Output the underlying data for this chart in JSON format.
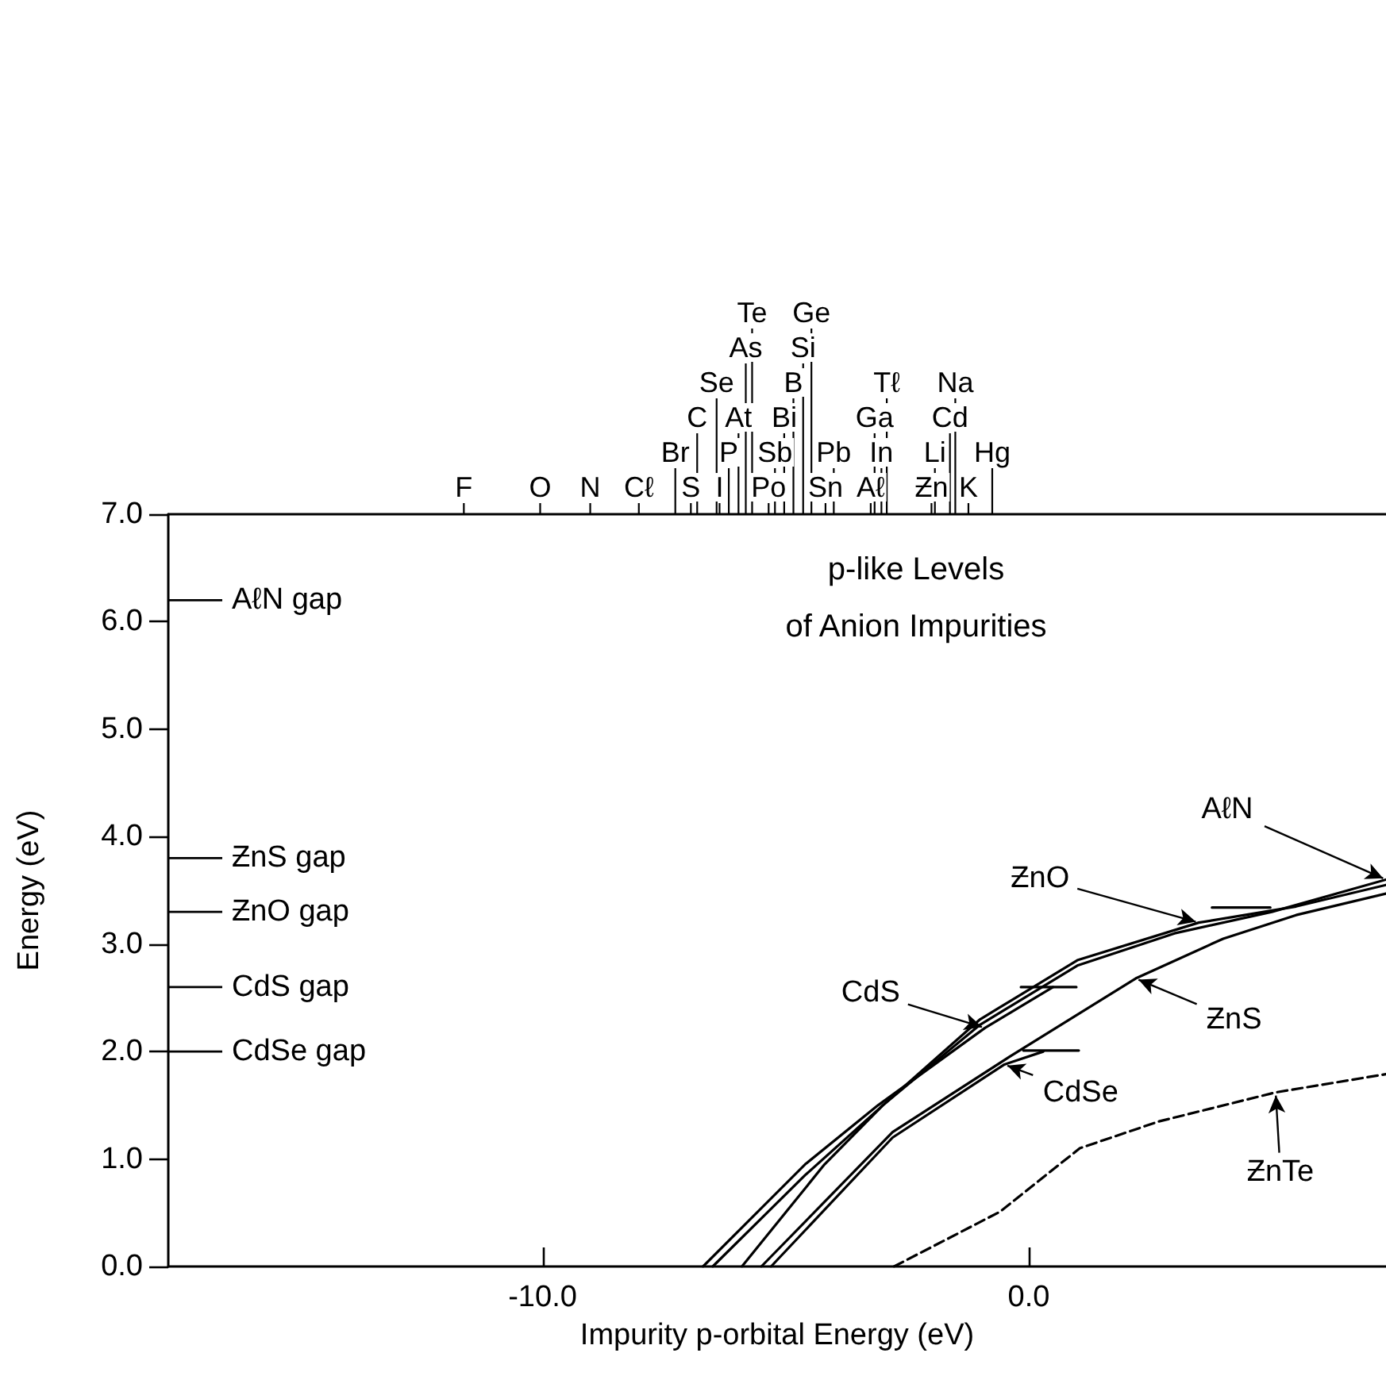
{
  "chart_data": {
    "type": "line",
    "title": "p-like Levels\nof Anion Impurities",
    "xlabel": "Impurity p-orbital Energy (eV)",
    "ylabel": "Energy (eV)",
    "xlim": [
      -17.7,
      7.35
    ],
    "ylim": [
      0,
      7
    ],
    "xticks": [
      {
        "value": -10,
        "label": "-10.0"
      },
      {
        "value": 0,
        "label": "0.0"
      }
    ],
    "yticks": [
      {
        "value": 0,
        "label": "0.0"
      },
      {
        "value": 1,
        "label": "1.0"
      },
      {
        "value": 2,
        "label": "2.0"
      },
      {
        "value": 3,
        "label": "3.0"
      },
      {
        "value": 4,
        "label": "4.0"
      },
      {
        "value": 5,
        "label": "5.0"
      },
      {
        "value": 6,
        "label": "6.0"
      },
      {
        "value": 7,
        "label": "7.0"
      }
    ],
    "grid": false,
    "legend": false,
    "marker": "none",
    "series": [
      {
        "name": "ƵnO",
        "color": "#000000",
        "x": [
          -6.5,
          -4.6,
          -3,
          -1,
          1,
          3.5,
          5.5,
          7.35
        ],
        "values": [
          0,
          0.85,
          1.5,
          2.3,
          2.85,
          3.2,
          3.35,
          3.55
        ]
      },
      {
        "name": "CdS",
        "color": "#000000",
        "x": [
          -6.7,
          -4.6,
          -3.1,
          -0.9,
          0.5
        ],
        "values": [
          0,
          0.95,
          1.5,
          2.22,
          2.6
        ]
      },
      {
        "name": "AℓN",
        "color": "#000000",
        "x": [
          -5.9,
          -4.2,
          -3,
          -1,
          1,
          3,
          5,
          7.35
        ],
        "values": [
          0,
          0.95,
          1.5,
          2.25,
          2.8,
          3.1,
          3.3,
          3.6
        ]
      },
      {
        "name": "ƵnS",
        "color": "#000000",
        "x": [
          -5.5,
          -2.8,
          -0.4,
          2.2,
          4,
          5.5,
          7.35
        ],
        "values": [
          0,
          1.25,
          1.95,
          2.68,
          3.05,
          3.27,
          3.47
        ]
      },
      {
        "name": "CdSe",
        "color": "#000000",
        "x": [
          -5.3,
          -2.8,
          -0.5,
          0.3
        ],
        "values": [
          0,
          1.2,
          1.88,
          2.0
        ]
      },
      {
        "name": "ƵnTe",
        "color": "#000000",
        "line_style": "dashed",
        "x": [
          -2.77,
          -0.59,
          1.05,
          2.68,
          5.08,
          7.35
        ],
        "values": [
          0,
          0.51,
          1.1,
          1.35,
          1.62,
          1.79
        ]
      },
      {
        "color": "#000000",
        "x": [
          3.77,
          4.97
        ],
        "values": [
          3.34,
          3.34
        ]
      },
      {
        "color": "#000000",
        "x": [
          -0.16,
          0.98
        ],
        "values": [
          2.6,
          2.6
        ]
      },
      {
        "color": "#000000",
        "x": [
          -0.11,
          1.03
        ],
        "values": [
          2.01,
          2.01
        ]
      }
    ],
    "ref_lines": [
      {
        "axis": "y",
        "value": 6.2,
        "label": "AℓN gap"
      },
      {
        "axis": "y",
        "value": 3.8,
        "label": "ƵnS gap"
      },
      {
        "axis": "y",
        "value": 3.3,
        "label": "ƵnO gap"
      },
      {
        "axis": "y",
        "value": 2.6,
        "label": "CdS gap"
      },
      {
        "axis": "y",
        "value": 2.0,
        "label": "CdSe gap"
      },
      {
        "axis": "x",
        "value": -11.62,
        "label": "F"
      },
      {
        "axis": "x",
        "value": -10.05,
        "label": "O"
      },
      {
        "axis": "x",
        "value": -9.02,
        "label": "N"
      },
      {
        "axis": "x",
        "value": -8.02,
        "label": "Cℓ"
      },
      {
        "axis": "x",
        "value": -7.27,
        "label": "Br"
      },
      {
        "axis": "x",
        "value": -6.95,
        "label": "S"
      },
      {
        "axis": "x",
        "value": -6.82,
        "label": "C"
      },
      {
        "axis": "x",
        "value": -6.42,
        "label": "Se"
      },
      {
        "axis": "x",
        "value": -6.36,
        "label": "I"
      },
      {
        "axis": "x",
        "value": -6.17,
        "label": "P"
      },
      {
        "axis": "x",
        "value": -5.97,
        "label": "At"
      },
      {
        "axis": "x",
        "value": -5.82,
        "label": "As"
      },
      {
        "axis": "x",
        "value": -5.69,
        "label": "Te"
      },
      {
        "axis": "x",
        "value": -5.35,
        "label": "Po"
      },
      {
        "axis": "x",
        "value": -5.22,
        "label": "Sb"
      },
      {
        "axis": "x",
        "value": -5.03,
        "label": "Bi"
      },
      {
        "axis": "x",
        "value": -4.84,
        "label": "B"
      },
      {
        "axis": "x",
        "value": -4.64,
        "label": "Si"
      },
      {
        "axis": "x",
        "value": -4.47,
        "label": "Ge"
      },
      {
        "axis": "x",
        "value": -4.18,
        "label": "Sn"
      },
      {
        "axis": "x",
        "value": -4.01,
        "label": "Pb"
      },
      {
        "axis": "x",
        "value": -3.25,
        "label": "Aℓ"
      },
      {
        "axis": "x",
        "value": -3.17,
        "label": "Ga"
      },
      {
        "axis": "x",
        "value": -3.03,
        "label": "In"
      },
      {
        "axis": "x",
        "value": -2.92,
        "label": "Tℓ"
      },
      {
        "axis": "x",
        "value": -2.0,
        "label": "Ƶn"
      },
      {
        "axis": "x",
        "value": -1.93,
        "label": "Li"
      },
      {
        "axis": "x",
        "value": -1.62,
        "label": "Cd"
      },
      {
        "axis": "x",
        "value": -1.51,
        "label": "Na"
      },
      {
        "axis": "x",
        "value": -1.24,
        "label": "K"
      },
      {
        "axis": "x",
        "value": -0.75,
        "label": "Hg"
      }
    ]
  }
}
